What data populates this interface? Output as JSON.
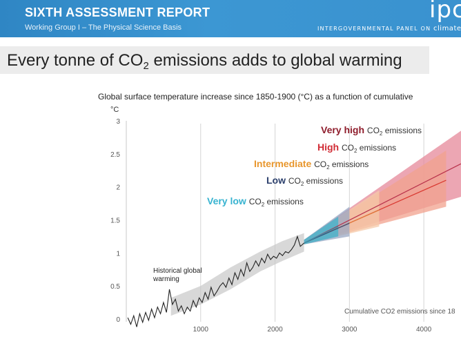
{
  "header": {
    "title": "SIXTH ASSESSMENT REPORT",
    "subtitle": "Working Group I – The Physical Science Basis",
    "logo": "ipcc",
    "org_prefix": "INTERGOVERNMENTAL PANEL ON",
    "org_highlight": "climate change",
    "color": "#3a92cf"
  },
  "slide": {
    "title_pre": "Every tonne of CO",
    "title_sub": "2",
    "title_post": " emissions adds to global warming"
  },
  "chart_data": {
    "type": "line",
    "title": "Global surface temperature increase since 1850-1900 (°C) as a function of cumulative",
    "ylabel": "°C",
    "xlabel": "Cumulative CO2 emissions since 18",
    "xlim": [
      0,
      4500
    ],
    "ylim": [
      0,
      3
    ],
    "yticks": [
      0,
      0.5,
      1,
      1.5,
      2,
      2.5,
      3
    ],
    "ytick_labels": [
      "0",
      "0.5",
      "1",
      "1.5",
      "2",
      "2.5",
      "3"
    ],
    "xticks": [
      1000,
      2000,
      3000,
      4000
    ],
    "xtick_labels": [
      "1000",
      "2000",
      "3000",
      "4000"
    ],
    "grid": "vertical",
    "annotation": "Historical global warming",
    "historical": {
      "color": "#222222",
      "band_color": "#c8c8c8",
      "x": [
        20,
        60,
        100,
        140,
        180,
        220,
        260,
        300,
        340,
        380,
        420,
        460,
        500,
        540,
        580,
        620,
        660,
        700,
        740,
        780,
        820,
        860,
        900,
        940,
        980,
        1020,
        1060,
        1100,
        1140,
        1180,
        1220,
        1260,
        1300,
        1340,
        1380,
        1420,
        1460,
        1500,
        1540,
        1580,
        1620,
        1660,
        1700,
        1740,
        1780,
        1820,
        1860,
        1900,
        1940,
        1980,
        2020,
        2060,
        2100,
        2140,
        2180,
        2220,
        2260,
        2300,
        2340,
        2390
      ],
      "y": [
        0.02,
        -0.08,
        0.05,
        -0.12,
        0.08,
        -0.05,
        0.1,
        -0.02,
        0.15,
        0.02,
        0.18,
        0.08,
        0.25,
        0.1,
        0.45,
        0.22,
        0.3,
        0.12,
        0.2,
        0.08,
        0.18,
        0.12,
        0.28,
        0.18,
        0.32,
        0.25,
        0.4,
        0.3,
        0.48,
        0.35,
        0.42,
        0.5,
        0.55,
        0.48,
        0.62,
        0.52,
        0.7,
        0.6,
        0.75,
        0.65,
        0.85,
        0.72,
        0.78,
        0.88,
        0.8,
        0.92,
        0.85,
        0.98,
        0.9,
        0.95,
        0.92,
        1.0,
        0.96,
        1.02,
        1.0,
        1.05,
        1.12,
        1.25,
        1.1,
        1.15
      ]
    },
    "series": [
      {
        "name": "Very high",
        "label_color": "#8f1d2c",
        "color": "#b8304a",
        "band_color": "#e5889a",
        "x": [
          2390,
          4500
        ],
        "y": [
          1.15,
          2.35
        ],
        "band_x": [
          2390,
          4500
        ],
        "band_low": [
          1.13,
          1.85
        ],
        "band_high": [
          1.2,
          2.85
        ]
      },
      {
        "name": "High",
        "label_color": "#d12c35",
        "color": "#d8362e",
        "band_color": "#f2a28e",
        "x": [
          2390,
          4300
        ],
        "y": [
          1.15,
          2.1
        ],
        "band_x": [
          2390,
          4300
        ],
        "band_low": [
          1.13,
          1.7
        ],
        "band_high": [
          1.2,
          2.55
        ]
      },
      {
        "name": "Intermediate",
        "label_color": "#e8962c",
        "color": "#e07a3a",
        "band_color": "#f6c9a8",
        "x": [
          2390,
          3400
        ],
        "y": [
          1.15,
          1.65
        ],
        "band_x": [
          2390,
          3400
        ],
        "band_low": [
          1.13,
          1.4
        ],
        "band_high": [
          1.2,
          1.95
        ]
      },
      {
        "name": "Low",
        "label_color": "#2b3f6c",
        "color": "#3a4f7a",
        "band_color": "#9aa8c4",
        "x": [
          2390,
          3000
        ],
        "y": [
          1.15,
          1.45
        ],
        "band_x": [
          2390,
          3000
        ],
        "band_low": [
          1.13,
          1.25
        ],
        "band_high": [
          1.2,
          1.7
        ]
      },
      {
        "name": "Very low",
        "label_color": "#37b3d0",
        "color": "#2a9bb8",
        "band_color": "#3fb3cc",
        "x": [
          2390,
          2850
        ],
        "y": [
          1.15,
          1.4
        ],
        "band_x": [
          2390,
          2850
        ],
        "band_low": [
          1.13,
          1.25
        ],
        "band_high": [
          1.2,
          1.55
        ]
      }
    ],
    "label_suffix_pre": "CO",
    "label_suffix_sub": "2",
    "label_suffix_post": " emissions"
  }
}
